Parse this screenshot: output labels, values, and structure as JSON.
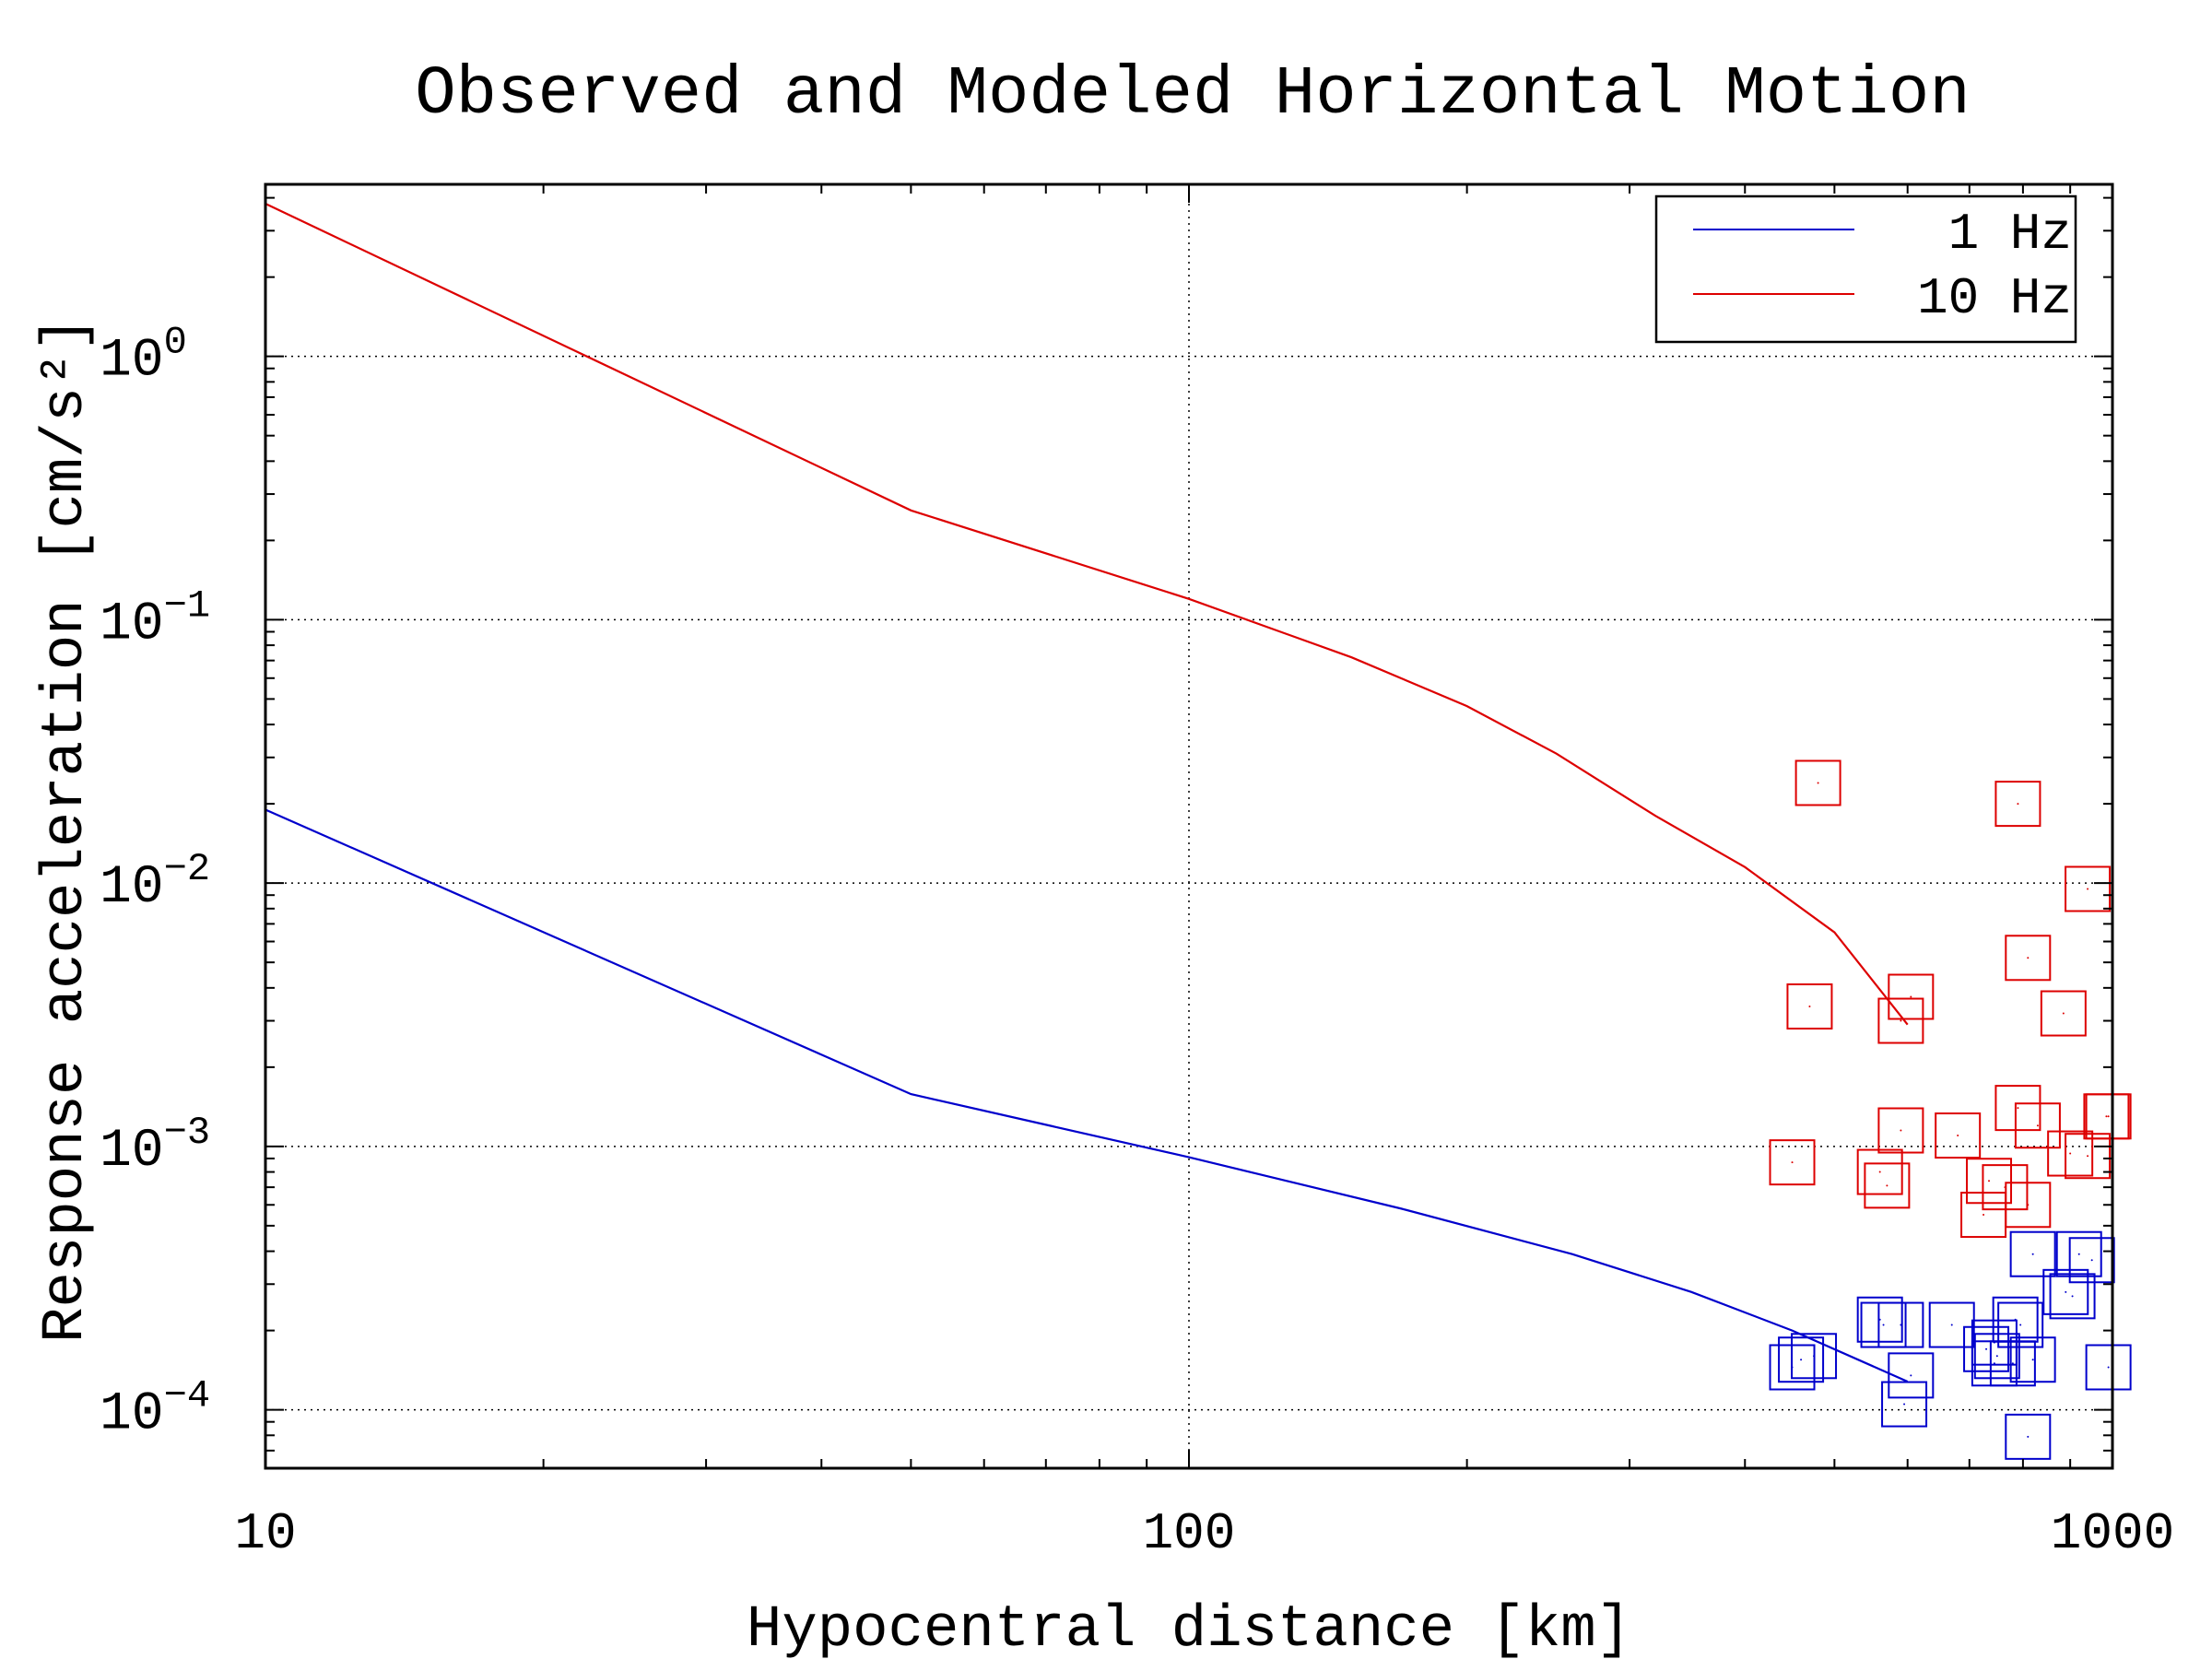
{
  "chart_data": {
    "type": "line+scatter",
    "title": "Observed and Modeled Horizontal Motion",
    "xlabel": "Hypocentral distance [km]",
    "ylabel": "Response acceleration [cm/s²]",
    "xscale": "log",
    "yscale": "log",
    "xlim": [
      10,
      1000
    ],
    "ylim": [
      6e-05,
      4.5
    ],
    "grid": true,
    "legend_position": "top-right",
    "x_ticks": [
      {
        "value": 10,
        "label": "10"
      },
      {
        "value": 100,
        "label": "100"
      },
      {
        "value": 1000,
        "label": "1000"
      }
    ],
    "y_ticks": [
      {
        "value": 1,
        "base": "10",
        "exp": "0"
      },
      {
        "value": 0.1,
        "base": "10",
        "exp": "−1"
      },
      {
        "value": 0.01,
        "base": "10",
        "exp": "−2"
      },
      {
        "value": 0.001,
        "base": "10",
        "exp": "−3"
      },
      {
        "value": 0.0001,
        "base": "10",
        "exp": "−4"
      }
    ],
    "series": [
      {
        "name": "1 Hz",
        "color": "#0000cc",
        "kind": "line",
        "x": [
          10,
          50,
          100,
          170,
          260,
          350,
          450,
          600
        ],
        "y": [
          0.019,
          0.00158,
          0.00091,
          0.00058,
          0.00039,
          0.00028,
          0.0002,
          0.000128
        ]
      },
      {
        "name": "10 Hz",
        "color": "#dd0000",
        "kind": "line",
        "x": [
          10,
          50,
          100,
          150,
          200,
          250,
          320,
          400,
          500,
          600
        ],
        "y": [
          3.8,
          0.26,
          0.12,
          0.072,
          0.047,
          0.031,
          0.018,
          0.0115,
          0.0065,
          0.0029
        ]
      },
      {
        "name": "",
        "color": "#dd0000",
        "kind": "scatter",
        "marker": "square",
        "x": [
          480,
          790,
          940,
          470,
          605,
          590,
          810,
          885,
          450,
          590,
          680,
          790,
          830,
          900,
          560,
          570,
          735,
          765,
          810,
          725,
          990,
          985,
          940
        ],
        "y": [
          0.024,
          0.02,
          0.0095,
          0.0034,
          0.0037,
          0.003,
          0.0052,
          0.0032,
          0.00087,
          0.00115,
          0.0011,
          0.0014,
          0.0012,
          0.00094,
          0.0008,
          0.00071,
          0.00074,
          0.0007,
          0.0006,
          0.00055,
          0.0013,
          0.0013,
          0.00092
        ]
      },
      {
        "name": "",
        "color": "#0000cc",
        "kind": "scatter",
        "marker": "square",
        "x": [
          820,
          920,
          950,
          890,
          905,
          560,
          565,
          590,
          670,
          785,
          795,
          745,
          730,
          750,
          780,
          745,
          820,
          475,
          460,
          450,
          605,
          595,
          990,
          810
        ],
        "y": [
          0.00039,
          0.00039,
          0.00037,
          0.00028,
          0.00027,
          0.00022,
          0.00021,
          0.00021,
          0.00021,
          0.00022,
          0.00021,
          0.00018,
          0.00017,
          0.00016,
          0.00015,
          0.00015,
          0.000155,
          0.00016,
          0.000155,
          0.000145,
          0.000135,
          0.000105,
          0.000145,
          7.9e-05
        ]
      }
    ]
  }
}
